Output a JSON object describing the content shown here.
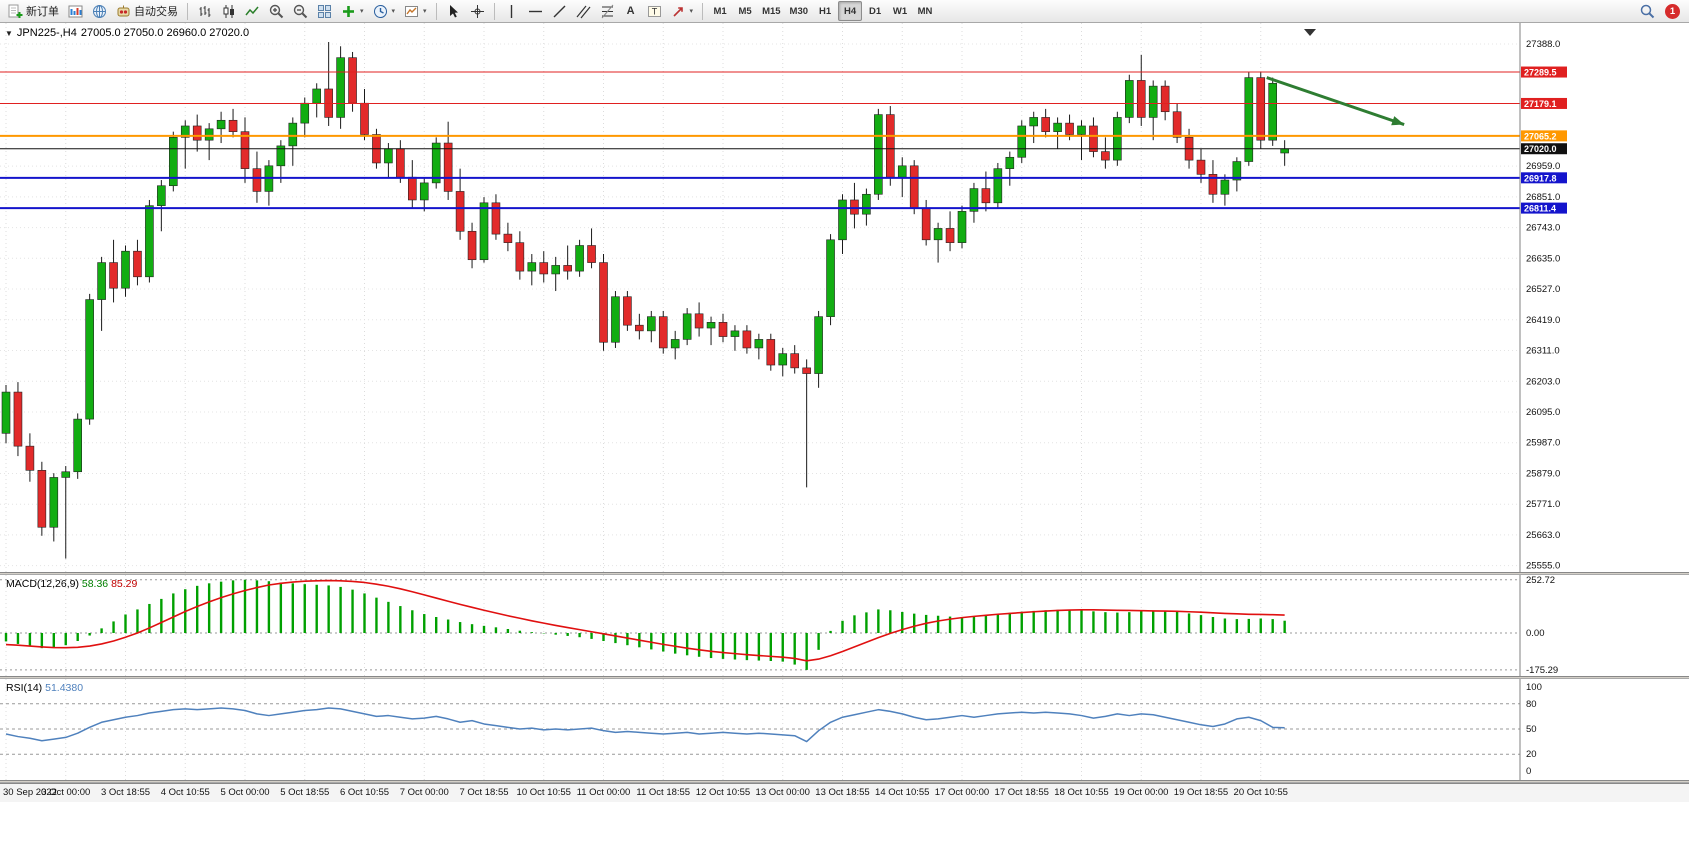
{
  "toolbar": {
    "new_order": "新订单",
    "autotrading": "自动交易",
    "timeframes": [
      "M1",
      "M5",
      "M15",
      "M30",
      "H1",
      "H4",
      "D1",
      "W1",
      "MN"
    ],
    "active_timeframe": "H4",
    "notification_count": "1"
  },
  "chart": {
    "symbol_period": "JPN225-,H4",
    "ohlc_text": "27005.0 27050.0 26960.0 27020.0"
  },
  "indicators": {
    "macd": {
      "name": "MACD(12,26,9)",
      "main": "58.36",
      "signal": "85.29",
      "axis": [
        "252.72",
        "0.00",
        "-175.29"
      ]
    },
    "rsi": {
      "name": "RSI(14)",
      "value": "51.4380",
      "axis": [
        "100",
        "80",
        "50",
        "20",
        "0"
      ]
    }
  },
  "chart_data": {
    "type": "candlestick",
    "symbol": "JPN225-",
    "timeframe": "H4",
    "current_ohlc": {
      "open": 27005.0,
      "high": 27050.0,
      "low": 26960.0,
      "close": 27020.0
    },
    "price_axis_regular": [
      27388.0,
      26959.0,
      26851.0,
      26743.0,
      26635.0,
      26527.0,
      26419.0,
      26311.0,
      26203.0,
      26095.0,
      25987.0,
      25879.0,
      25771.0,
      25663.0,
      25555.0
    ],
    "price_tags": [
      {
        "value": "27289.5",
        "color": "#e02020"
      },
      {
        "value": "27179.1",
        "color": "#e02020"
      },
      {
        "value": "27065.2",
        "color": "#ff9800"
      },
      {
        "value": "27020.0",
        "color": "#101010"
      },
      {
        "value": "26917.8",
        "color": "#1414cc"
      },
      {
        "value": "26811.4",
        "color": "#1414cc"
      }
    ],
    "hlines": [
      {
        "price": 27289.5,
        "color": "#e02020",
        "width": 1
      },
      {
        "price": 27179.1,
        "color": "#e02020",
        "width": 1
      },
      {
        "price": 27065.2,
        "color": "#ff9800",
        "width": 2
      },
      {
        "price": 27020.0,
        "color": "#101010",
        "width": 1
      },
      {
        "price": 26917.8,
        "color": "#1414cc",
        "width": 2
      },
      {
        "price": 26811.4,
        "color": "#1414cc",
        "width": 2
      }
    ],
    "time_labels": [
      "30 Sep 2022",
      "3 Oct 00:00",
      "3 Oct 18:55",
      "4 Oct 10:55",
      "5 Oct 00:00",
      "5 Oct 18:55",
      "6 Oct 10:55",
      "7 Oct 00:00",
      "7 Oct 18:55",
      "10 Oct 10:55",
      "11 Oct 00:00",
      "11 Oct 18:55",
      "12 Oct 10:55",
      "13 Oct 00:00",
      "13 Oct 18:55",
      "14 Oct 10:55",
      "17 Oct 00:00",
      "17 Oct 18:55",
      "18 Oct 10:55",
      "19 Oct 00:00",
      "19 Oct 18:55",
      "20 Oct 10:55"
    ],
    "candles": [
      [
        26020,
        26190,
        25985,
        26165
      ],
      [
        26165,
        26200,
        25940,
        25975
      ],
      [
        25975,
        26020,
        25850,
        25890
      ],
      [
        25890,
        25920,
        25660,
        25690
      ],
      [
        25690,
        25880,
        25640,
        25865
      ],
      [
        25865,
        25905,
        25580,
        25885
      ],
      [
        25885,
        26090,
        25860,
        26070
      ],
      [
        26070,
        26510,
        26050,
        26490
      ],
      [
        26490,
        26640,
        26380,
        26620
      ],
      [
        26620,
        26700,
        26480,
        26530
      ],
      [
        26530,
        26680,
        26500,
        26660
      ],
      [
        26660,
        26700,
        26540,
        26570
      ],
      [
        26570,
        26840,
        26550,
        26820
      ],
      [
        26820,
        26910,
        26730,
        26890
      ],
      [
        26890,
        27080,
        26870,
        27060
      ],
      [
        27060,
        27120,
        26950,
        27100
      ],
      [
        27100,
        27140,
        27010,
        27050
      ],
      [
        27050,
        27110,
        26980,
        27090
      ],
      [
        27090,
        27150,
        27040,
        27120
      ],
      [
        27120,
        27160,
        27060,
        27080
      ],
      [
        27080,
        27130,
        26900,
        26950
      ],
      [
        26950,
        27010,
        26830,
        26870
      ],
      [
        26870,
        26980,
        26820,
        26960
      ],
      [
        26960,
        27050,
        26900,
        27030
      ],
      [
        27030,
        27130,
        26960,
        27110
      ],
      [
        27110,
        27200,
        27060,
        27180
      ],
      [
        27180,
        27250,
        27130,
        27230
      ],
      [
        27230,
        27395,
        27100,
        27130
      ],
      [
        27130,
        27380,
        27090,
        27340
      ],
      [
        27340,
        27360,
        27150,
        27180
      ],
      [
        27180,
        27230,
        27050,
        27070
      ],
      [
        27070,
        27090,
        26950,
        26970
      ],
      [
        26970,
        27040,
        26920,
        27020
      ],
      [
        27020,
        27050,
        26900,
        26920
      ],
      [
        26920,
        26980,
        26810,
        26840
      ],
      [
        26840,
        26920,
        26800,
        26900
      ],
      [
        26900,
        27060,
        26880,
        27040
      ],
      [
        27040,
        27115,
        26840,
        26870
      ],
      [
        26870,
        26950,
        26700,
        26730
      ],
      [
        26730,
        26760,
        26600,
        26630
      ],
      [
        26630,
        26850,
        26620,
        26830
      ],
      [
        26830,
        26860,
        26700,
        26720
      ],
      [
        26720,
        26760,
        26660,
        26690
      ],
      [
        26690,
        26730,
        26560,
        26590
      ],
      [
        26590,
        26650,
        26540,
        26620
      ],
      [
        26620,
        26660,
        26550,
        26580
      ],
      [
        26580,
        26640,
        26520,
        26610
      ],
      [
        26610,
        26680,
        26560,
        26590
      ],
      [
        26590,
        26700,
        26570,
        26680
      ],
      [
        26680,
        26740,
        26600,
        26620
      ],
      [
        26620,
        26650,
        26310,
        26340
      ],
      [
        26340,
        26520,
        26320,
        26500
      ],
      [
        26500,
        26520,
        26380,
        26400
      ],
      [
        26400,
        26440,
        26350,
        26380
      ],
      [
        26380,
        26450,
        26340,
        26430
      ],
      [
        26430,
        26450,
        26300,
        26320
      ],
      [
        26320,
        26380,
        26280,
        26350
      ],
      [
        26350,
        26460,
        26330,
        26440
      ],
      [
        26440,
        26480,
        26360,
        26390
      ],
      [
        26390,
        26430,
        26330,
        26410
      ],
      [
        26410,
        26440,
        26340,
        26360
      ],
      [
        26360,
        26400,
        26310,
        26380
      ],
      [
        26380,
        26400,
        26300,
        26320
      ],
      [
        26320,
        26370,
        26280,
        26350
      ],
      [
        26350,
        26370,
        26240,
        26260
      ],
      [
        26260,
        26320,
        26220,
        26300
      ],
      [
        26300,
        26330,
        26230,
        26250
      ],
      [
        26250,
        26280,
        25830,
        26230
      ],
      [
        26230,
        26450,
        26180,
        26430
      ],
      [
        26430,
        26720,
        26400,
        26700
      ],
      [
        26700,
        26860,
        26650,
        26840
      ],
      [
        26840,
        26900,
        26740,
        26790
      ],
      [
        26790,
        26880,
        26750,
        26860
      ],
      [
        26860,
        27160,
        26840,
        27140
      ],
      [
        27140,
        27170,
        26890,
        26920
      ],
      [
        26920,
        26990,
        26850,
        26960
      ],
      [
        26960,
        26980,
        26790,
        26810
      ],
      [
        26810,
        26840,
        26680,
        26700
      ],
      [
        26700,
        26760,
        26620,
        26740
      ],
      [
        26740,
        26800,
        26660,
        26690
      ],
      [
        26690,
        26820,
        26670,
        26800
      ],
      [
        26800,
        26900,
        26760,
        26880
      ],
      [
        26880,
        26940,
        26800,
        26830
      ],
      [
        26830,
        26970,
        26810,
        26950
      ],
      [
        26950,
        27010,
        26890,
        26990
      ],
      [
        26990,
        27120,
        26970,
        27100
      ],
      [
        27100,
        27150,
        27040,
        27130
      ],
      [
        27130,
        27160,
        27060,
        27080
      ],
      [
        27080,
        27130,
        27020,
        27110
      ],
      [
        27110,
        27140,
        27050,
        27070
      ],
      [
        27070,
        27120,
        26980,
        27100
      ],
      [
        27100,
        27130,
        26990,
        27010
      ],
      [
        27010,
        27060,
        26950,
        26980
      ],
      [
        26980,
        27150,
        26960,
        27130
      ],
      [
        27130,
        27280,
        27110,
        27260
      ],
      [
        27260,
        27350,
        27100,
        27130
      ],
      [
        27130,
        27260,
        27050,
        27240
      ],
      [
        27240,
        27260,
        27120,
        27150
      ],
      [
        27150,
        27180,
        27040,
        27060
      ],
      [
        27060,
        27090,
        26950,
        26980
      ],
      [
        26980,
        27020,
        26900,
        26930
      ],
      [
        26930,
        26980,
        26830,
        26860
      ],
      [
        26860,
        26930,
        26820,
        26910
      ],
      [
        26910,
        26990,
        26870,
        26975
      ],
      [
        26975,
        27290,
        26960,
        27270
      ],
      [
        27270,
        27290,
        27020,
        27050
      ],
      [
        27050,
        27270,
        27030,
        27250
      ],
      [
        27005,
        27050,
        26960,
        27020
      ]
    ],
    "macd_levels": [
      252.72,
      0,
      -175.29
    ],
    "macd_histogram": [
      -40,
      -52,
      -62,
      -72,
      -70,
      -58,
      -38,
      -12,
      22,
      55,
      88,
      112,
      138,
      162,
      188,
      208,
      224,
      236,
      244,
      250,
      252.72,
      250,
      246,
      240,
      236,
      232,
      229,
      226,
      219,
      206,
      188,
      168,
      148,
      128,
      108,
      90,
      76,
      64,
      52,
      42,
      34,
      27,
      19,
      11,
      4,
      -2,
      -8,
      -14,
      -20,
      -28,
      -38,
      -48,
      -58,
      -68,
      -78,
      -88,
      -98,
      -106,
      -113,
      -119,
      -123,
      -126,
      -129,
      -131,
      -133,
      -136,
      -150,
      -175.29,
      -80,
      10,
      58,
      84,
      98,
      112,
      108,
      100,
      92,
      86,
      82,
      78,
      76,
      79,
      84,
      90,
      96,
      101,
      105,
      108,
      110,
      109,
      107,
      103,
      99,
      97,
      99,
      103,
      105,
      104,
      100,
      93,
      85,
      76,
      69,
      66,
      67,
      69,
      66,
      58.36
    ],
    "macd_signal": [
      -55,
      -58,
      -62,
      -66,
      -69,
      -70,
      -68,
      -62,
      -52,
      -38,
      -20,
      0,
      24,
      50,
      76,
      102,
      126,
      148,
      168,
      186,
      202,
      216,
      228,
      236,
      242,
      246,
      248,
      249,
      248,
      245,
      240,
      232,
      222,
      210,
      196,
      181,
      166,
      151,
      136,
      122,
      108,
      95,
      82,
      70,
      58,
      47,
      36,
      26,
      16,
      6,
      -4,
      -14,
      -24,
      -34,
      -44,
      -54,
      -63,
      -72,
      -80,
      -87,
      -93,
      -98,
      -103,
      -107,
      -111,
      -115,
      -121,
      -132,
      -124,
      -108,
      -88,
      -66,
      -44,
      -22,
      -2,
      16,
      32,
      46,
      57,
      66,
      73,
      79,
      84,
      89,
      93,
      97,
      101,
      104,
      107,
      109,
      110,
      110,
      109,
      108,
      107,
      106,
      105,
      104,
      103,
      101,
      99,
      96,
      93,
      91,
      89,
      88,
      87,
      85.29
    ],
    "rsi_levels": [
      80,
      50,
      20
    ],
    "rsi_range": [
      0,
      100
    ],
    "rsi_values": [
      44,
      41,
      39,
      36,
      38,
      40,
      45,
      52,
      58,
      61,
      64,
      66,
      69,
      71,
      73,
      74,
      73,
      74,
      75,
      74,
      72,
      68,
      66,
      68,
      70,
      72,
      73,
      75,
      74,
      71,
      68,
      65,
      66,
      64,
      62,
      63,
      65,
      62,
      58,
      60,
      56,
      54,
      52,
      50,
      51,
      49,
      50,
      49,
      50,
      51,
      48,
      46,
      47,
      46,
      45,
      44,
      45,
      46,
      44,
      45,
      46,
      45,
      44,
      45,
      44,
      43,
      42,
      35,
      48,
      58,
      64,
      67,
      70,
      73,
      71,
      68,
      64,
      61,
      62,
      64,
      66,
      64,
      66,
      68,
      69,
      70,
      69,
      70,
      69,
      68,
      66,
      63,
      65,
      68,
      66,
      68,
      67,
      64,
      61,
      58,
      55,
      53,
      56,
      62,
      64,
      60,
      52,
      51.44
    ],
    "arrow": {
      "from_bar": 105.5,
      "from_price": 27270,
      "to_bar": 117,
      "to_price": 27105,
      "color": "#2e7d32"
    },
    "colors": {
      "up": "#12ad12",
      "down": "#e22a2a",
      "wick": "#1a1a1a",
      "macd_hist": "#00a000",
      "macd_signal": "#e01010",
      "rsi_line": "#4f81bd",
      "grid": "#dcdcdc"
    }
  }
}
